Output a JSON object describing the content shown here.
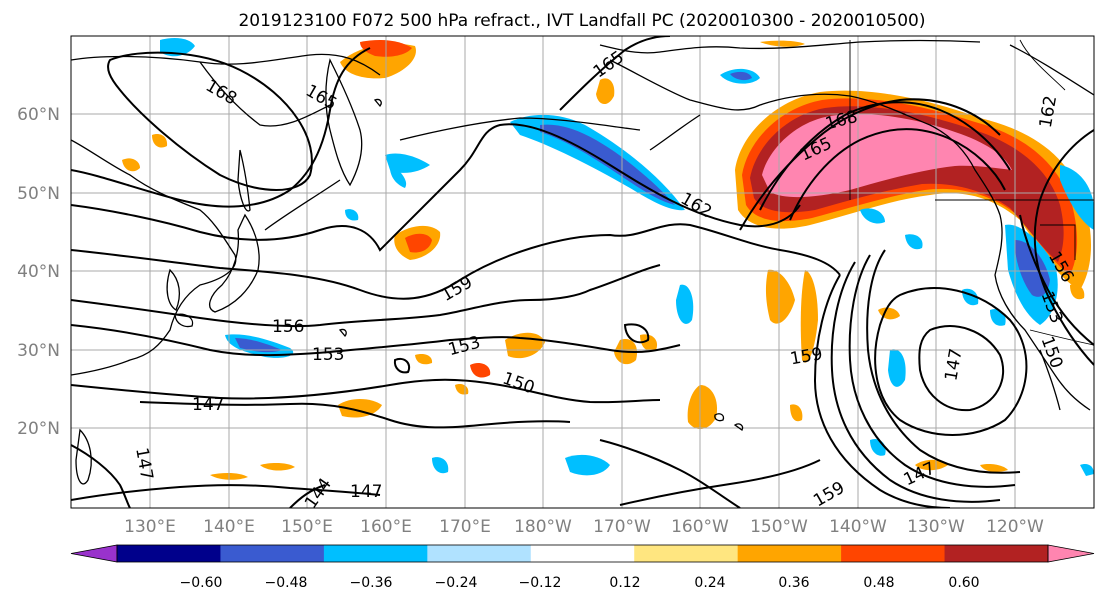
{
  "figure": {
    "title": "2019123100 F072 500 hPa refract., IVT Landfall PC (2020010300 - 2020010500)"
  },
  "map": {
    "lat_labels": [
      "60°N",
      "50°N",
      "40°N",
      "30°N",
      "20°N"
    ],
    "lon_labels": [
      "130°E",
      "140°E",
      "150°E",
      "160°E",
      "170°E",
      "180°W",
      "170°W",
      "160°W",
      "150°W",
      "140°W",
      "130°W",
      "120°W"
    ],
    "contour_labels": [
      "168",
      "165",
      "165",
      "168",
      "165",
      "162",
      "159",
      "156",
      "153",
      "153",
      "150",
      "147",
      "147",
      "144",
      "147",
      "159",
      "159",
      "147",
      "147",
      "156",
      "153",
      "150",
      "162"
    ]
  },
  "colorbar": {
    "tick_labels": [
      "−0.60",
      "−0.48",
      "−0.36",
      "−0.24",
      "−0.12",
      "0.12",
      "0.24",
      "0.36",
      "0.48",
      "0.60"
    ],
    "colors": [
      "#9932cc",
      "#00008b",
      "#3a5bd0",
      "#00bfff",
      "#b0e2ff",
      "#ffffff",
      "#ffe680",
      "#ffa500",
      "#ff4500",
      "#b22222",
      "#ff85b0"
    ]
  },
  "chart_data": {
    "type": "heatmap",
    "title": "2019123100 F072 500 hPa refract., IVT Landfall PC (2020010300 - 2020010500)",
    "lat_ticks": [
      60,
      50,
      40,
      30,
      20
    ],
    "lon_ticks": [
      "130°E",
      "140°E",
      "150°E",
      "160°E",
      "170°E",
      "180°W",
      "170°W",
      "160°W",
      "150°W",
      "140°W",
      "130°W",
      "120°W"
    ],
    "contour_levels_labeled": [
      144,
      147,
      150,
      153,
      156,
      159,
      162,
      165,
      168
    ],
    "colorbar_levels": [
      -0.6,
      -0.48,
      -0.36,
      -0.24,
      -0.12,
      0.12,
      0.24,
      0.36,
      0.48,
      0.6
    ],
    "colorbar_extend": "both"
  }
}
